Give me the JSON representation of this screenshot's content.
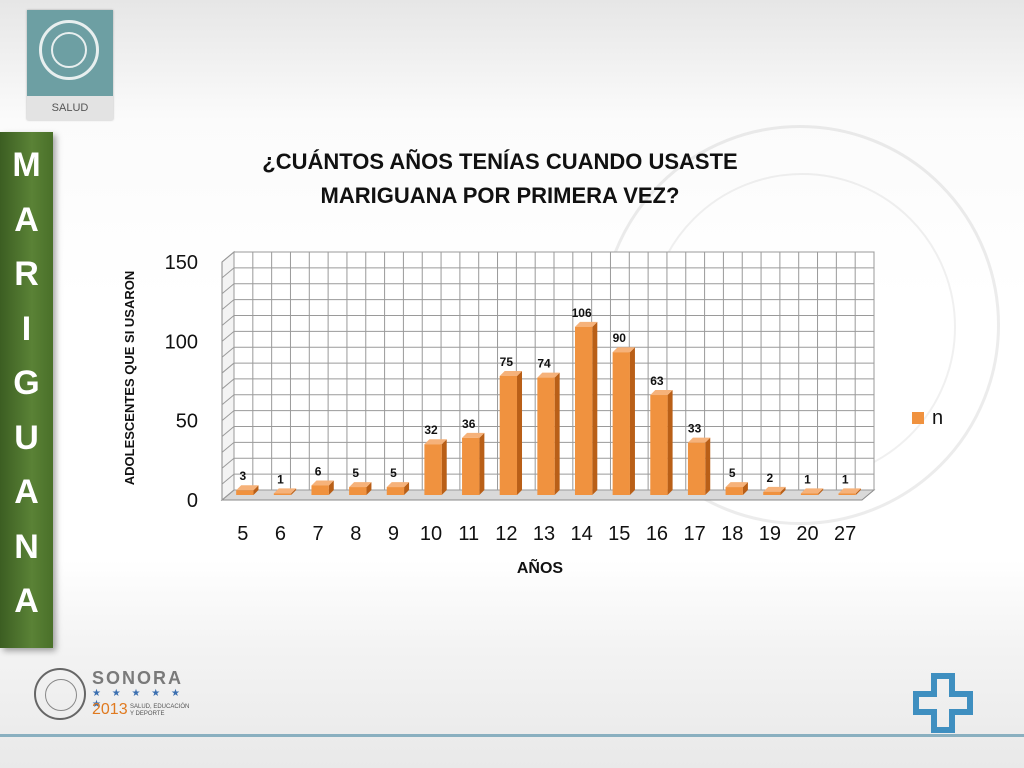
{
  "header": {
    "logo_label": "SALUD"
  },
  "side_word": [
    "M",
    "A",
    "R",
    "I",
    "G",
    "U",
    "A",
    "N",
    "A"
  ],
  "chart_data": {
    "type": "bar",
    "title_lines": [
      "¿CUÁNTOS AÑOS TENÍAS CUANDO USASTE",
      "MARIGUANA POR PRIMERA VEZ?"
    ],
    "xlabel": "AÑOS",
    "ylabel": "ADOLESCENTES QUE SI USARON",
    "categories": [
      "5",
      "6",
      "7",
      "8",
      "9",
      "10",
      "11",
      "12",
      "13",
      "14",
      "15",
      "16",
      "17",
      "18",
      "19",
      "20",
      "27"
    ],
    "series": [
      {
        "name": "n",
        "values": [
          3,
          1,
          6,
          5,
          5,
          32,
          36,
          75,
          74,
          106,
          90,
          63,
          33,
          5,
          2,
          1,
          1
        ]
      }
    ],
    "ylim": [
      0,
      150
    ],
    "yticks": [
      "0",
      "50",
      "100",
      "150"
    ],
    "grid": true,
    "legend_position": "right",
    "bar_color": "#f0923f"
  },
  "footer": {
    "brand": "SONORA",
    "stars": "★ ★ ★ ★ ★ ★",
    "year": "2013",
    "tagline": "SALUD, EDUCACIÓN Y DEPORTE"
  }
}
